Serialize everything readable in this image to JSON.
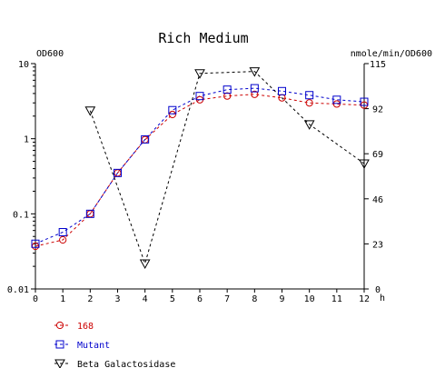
{
  "chart_data": {
    "type": "line",
    "title": "Rich Medium",
    "left_axis": {
      "label": "OD600",
      "scale": "log",
      "range": [
        0.01,
        10
      ],
      "ticks": [
        0.01,
        0.1,
        1,
        10
      ],
      "tick_labels": [
        "0.01",
        "0.1",
        "1",
        "10"
      ]
    },
    "right_axis": {
      "label": "nmole/min/OD600",
      "scale": "linear",
      "range": [
        0,
        115
      ],
      "ticks": [
        0,
        23,
        46,
        69,
        92,
        115
      ],
      "tick_labels": [
        "0",
        "23",
        "46",
        "69",
        "92",
        "115"
      ]
    },
    "x_axis": {
      "label": "h",
      "range": [
        0,
        12
      ],
      "ticks": [
        0,
        1,
        2,
        3,
        4,
        5,
        6,
        7,
        8,
        9,
        10,
        11,
        12
      ],
      "tick_labels": [
        "0",
        "1",
        "2",
        "3",
        "4",
        "5",
        "6",
        "7",
        "8",
        "9",
        "10",
        "11",
        "12"
      ]
    },
    "series": [
      {
        "name": "168",
        "axis": "left",
        "marker": "circle",
        "color": "#cc0000",
        "x": [
          0,
          1,
          2,
          3,
          4,
          5,
          6,
          7,
          8,
          9,
          10,
          11,
          12
        ],
        "y": [
          0.037,
          0.045,
          0.1,
          0.35,
          0.97,
          2.1,
          3.3,
          3.7,
          3.9,
          3.5,
          3.0,
          2.9,
          2.8
        ]
      },
      {
        "name": "Mutant",
        "axis": "left",
        "marker": "square",
        "color": "#0000cc",
        "x": [
          0,
          1,
          2,
          3,
          4,
          5,
          6,
          7,
          8,
          9,
          10,
          11,
          12
        ],
        "y": [
          0.04,
          0.057,
          0.1,
          0.35,
          0.98,
          2.4,
          3.7,
          4.5,
          4.7,
          4.3,
          3.8,
          3.3,
          3.1
        ]
      },
      {
        "name": "Beta Galactosidase",
        "axis": "right",
        "marker": "triangle-down",
        "color": "#000000",
        "x": [
          2,
          4,
          6,
          8,
          10,
          12
        ],
        "y": [
          91,
          13,
          110,
          111,
          84,
          64
        ]
      }
    ],
    "grid": false,
    "legend_position": "bottom-left"
  }
}
